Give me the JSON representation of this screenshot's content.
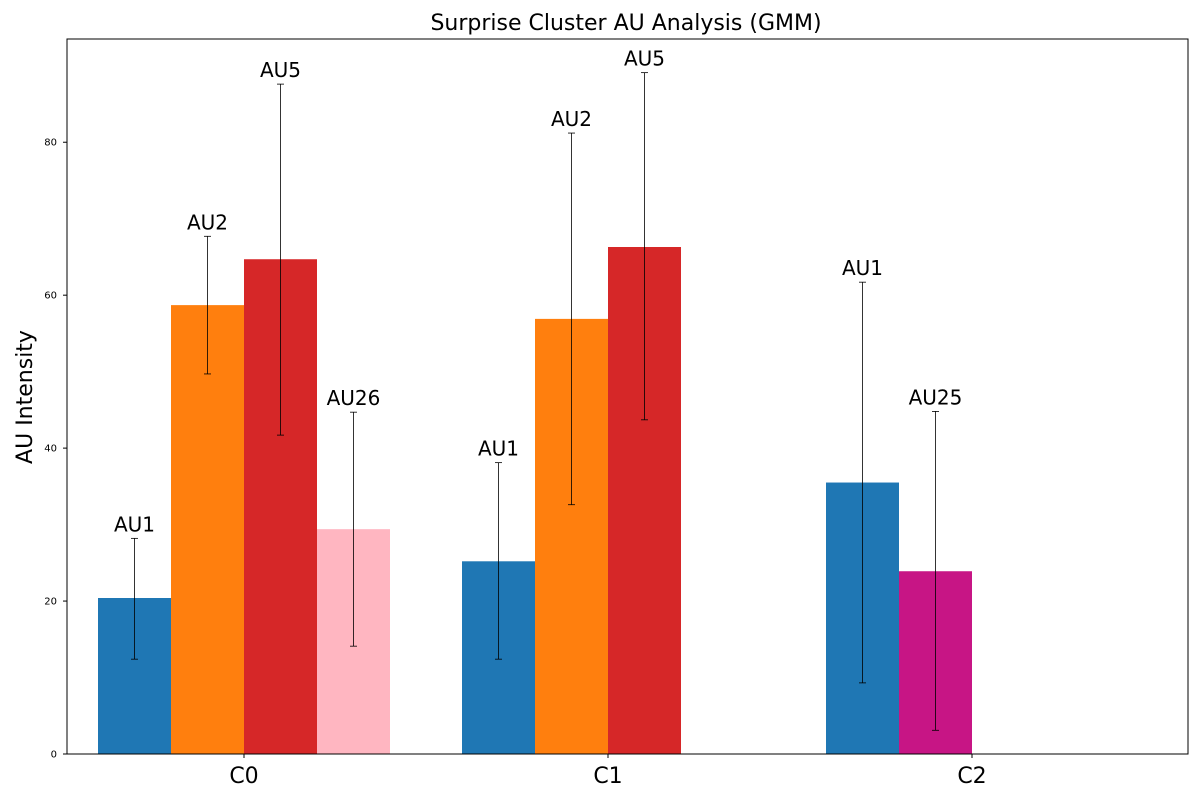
{
  "chart_data": {
    "type": "bar",
    "title": "Surprise Cluster AU Analysis (GMM)",
    "xlabel": "",
    "ylabel": "AU Intensity",
    "ylim": [
      0,
      93.5
    ],
    "yticks": [
      0,
      20,
      40,
      60,
      80
    ],
    "grid": false,
    "legend": "none",
    "categories": [
      "C0",
      "C1",
      "C2"
    ],
    "slots_per_category": 4,
    "bars": [
      {
        "category": "C0",
        "slot": 0,
        "label": "AU1",
        "value": 20.4,
        "err_low": 12.4,
        "err_high": 28.2,
        "color": "#1f77b4"
      },
      {
        "category": "C0",
        "slot": 1,
        "label": "AU2",
        "value": 58.7,
        "err_low": 49.7,
        "err_high": 67.7,
        "color": "#ff7f0e"
      },
      {
        "category": "C0",
        "slot": 2,
        "label": "AU5",
        "value": 64.7,
        "err_low": 41.7,
        "err_high": 87.6,
        "color": "#d62728"
      },
      {
        "category": "C0",
        "slot": 3,
        "label": "AU26",
        "value": 29.4,
        "err_low": 14.1,
        "err_high": 44.7,
        "color": "#ffb6c1"
      },
      {
        "category": "C1",
        "slot": 0,
        "label": "AU1",
        "value": 25.2,
        "err_low": 12.4,
        "err_high": 38.1,
        "color": "#1f77b4"
      },
      {
        "category": "C1",
        "slot": 1,
        "label": "AU2",
        "value": 56.9,
        "err_low": 32.6,
        "err_high": 81.2,
        "color": "#ff7f0e"
      },
      {
        "category": "C1",
        "slot": 2,
        "label": "AU5",
        "value": 66.3,
        "err_low": 43.7,
        "err_high": 89.1,
        "color": "#d62728"
      },
      {
        "category": "C2",
        "slot": 0,
        "label": "AU1",
        "value": 35.5,
        "err_low": 9.3,
        "err_high": 61.7,
        "color": "#1f77b4"
      },
      {
        "category": "C2",
        "slot": 1,
        "label": "AU25",
        "value": 23.9,
        "err_low": 3.1,
        "err_high": 44.8,
        "color": "#c71585"
      }
    ]
  }
}
